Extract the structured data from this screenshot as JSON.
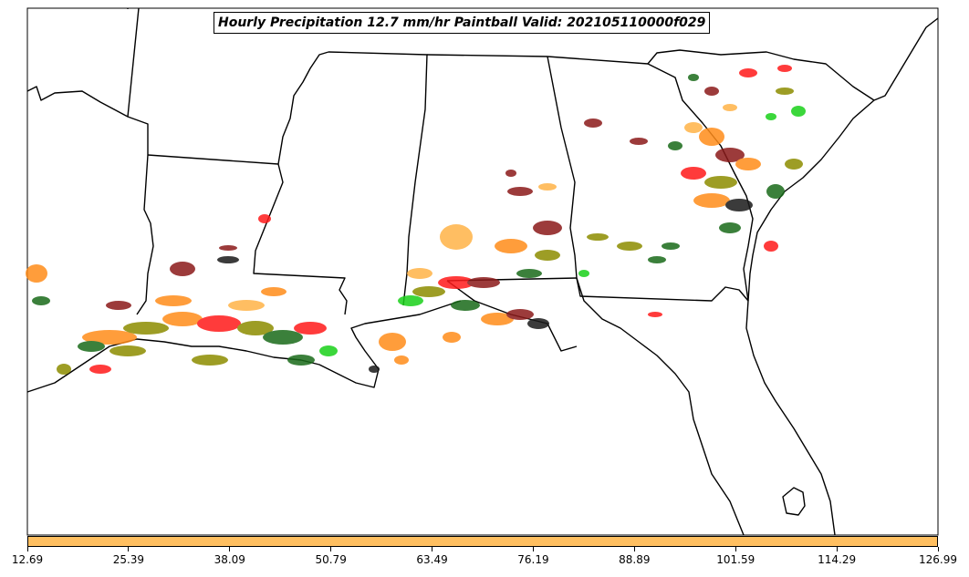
{
  "title": "Hourly Precipitation 12.7 mm/hr Paintball Valid: 202105110000f029",
  "colorbar": {
    "color": "#ffbf60",
    "ticks": [
      "12.69",
      "25.39",
      "38.09",
      "50.79",
      "63.49",
      "76.19",
      "88.89",
      "101.59",
      "114.29",
      "126.99"
    ]
  },
  "palette": {
    "land": "#ffffff",
    "border": "#000000",
    "red": "#ff1a1a",
    "dark_red": "#8b1a1a",
    "orange": "#ff8c1a",
    "light_orange": "#ffb347",
    "olive": "#8c8c00",
    "green": "#1ad11a",
    "dark_green": "#1a6b1a",
    "black": "#1a1a1a"
  },
  "icons": [
    "map-frame"
  ]
}
